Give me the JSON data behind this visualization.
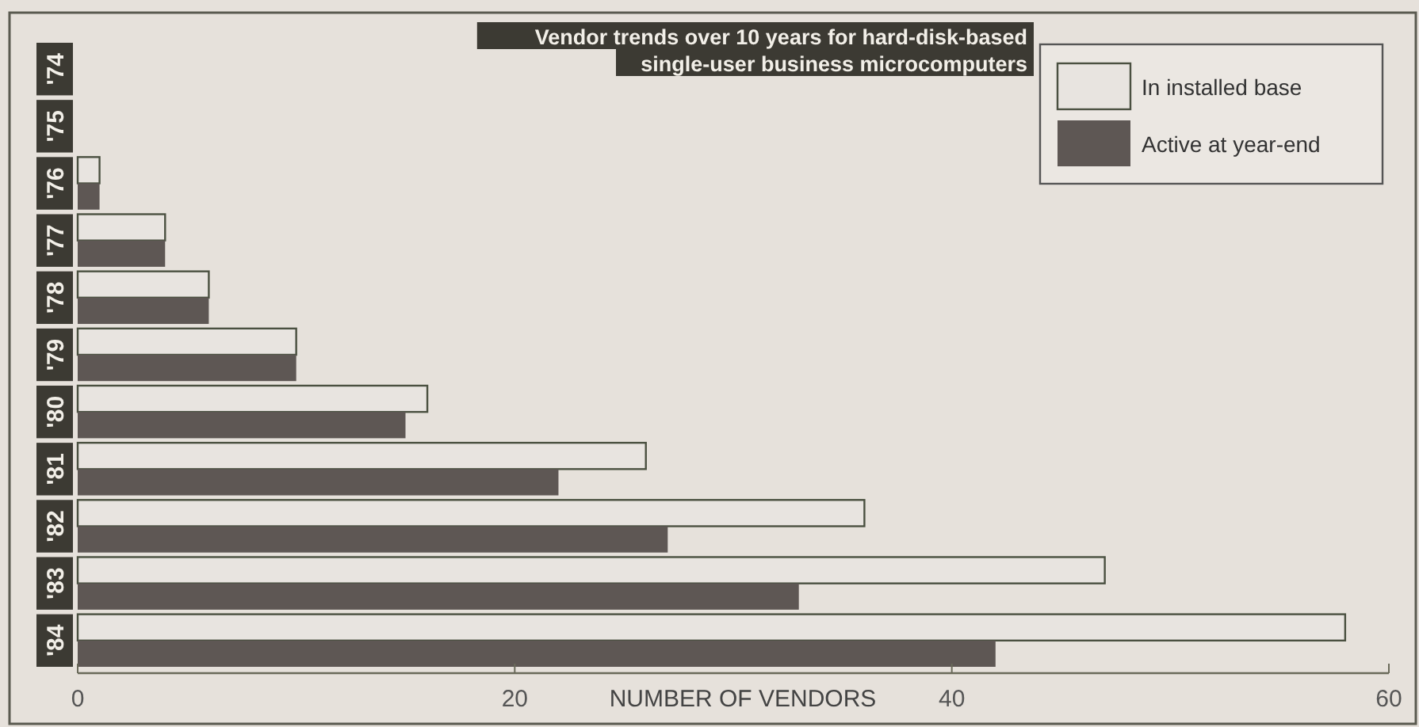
{
  "chart_data": {
    "type": "bar",
    "orientation": "horizontal",
    "title": "Vendor trends over 10 years for hard-disk-based single-user business microcomputers",
    "xlabel": "NUMBER OF VENDORS",
    "categories": [
      "'74",
      "'75",
      "'76",
      "'77",
      "'78",
      "'79",
      "'80",
      "'81",
      "'82",
      "'83",
      "'84"
    ],
    "series": [
      {
        "name": "In installed base",
        "color": "#e8e4e0",
        "values": [
          0,
          0,
          1,
          4,
          6,
          10,
          16,
          26,
          36,
          47,
          58
        ]
      },
      {
        "name": "Active at year-end",
        "color": "#5e5754",
        "values": [
          0,
          0,
          1,
          4,
          6,
          10,
          15,
          22,
          27,
          33,
          42
        ]
      }
    ],
    "xlim": [
      0,
      60
    ],
    "xticks": [
      0,
      20,
      40,
      60
    ],
    "legend": "top right"
  }
}
